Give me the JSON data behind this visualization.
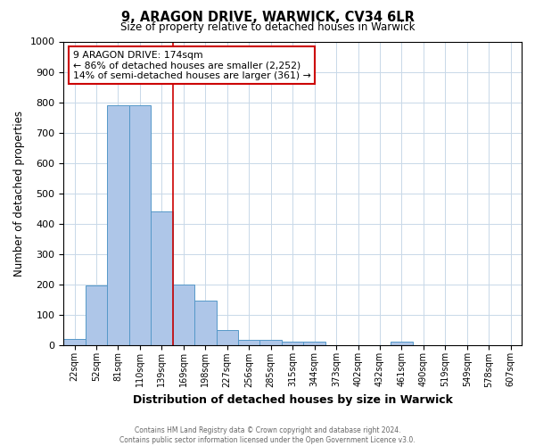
{
  "title": "9, ARAGON DRIVE, WARWICK, CV34 6LR",
  "subtitle": "Size of property relative to detached houses in Warwick",
  "xlabel": "Distribution of detached houses by size in Warwick",
  "ylabel": "Number of detached properties",
  "footer": "Contains HM Land Registry data © Crown copyright and database right 2024.\nContains public sector information licensed under the Open Government Licence v3.0.",
  "bins": [
    "22sqm",
    "52sqm",
    "81sqm",
    "110sqm",
    "139sqm",
    "169sqm",
    "198sqm",
    "227sqm",
    "256sqm",
    "285sqm",
    "315sqm",
    "344sqm",
    "373sqm",
    "402sqm",
    "432sqm",
    "461sqm",
    "490sqm",
    "519sqm",
    "549sqm",
    "578sqm",
    "607sqm"
  ],
  "bin_edges": [
    0,
    1,
    2,
    3,
    4,
    5,
    6,
    7,
    8,
    9,
    10,
    11,
    12,
    13,
    14,
    15,
    16,
    17,
    18,
    19,
    20
  ],
  "values": [
    20,
    195,
    790,
    790,
    440,
    200,
    145,
    50,
    15,
    15,
    10,
    10,
    0,
    0,
    0,
    10,
    0,
    0,
    0,
    0,
    0
  ],
  "bar_color": "#aec6e8",
  "bar_edge_color": "#5598c8",
  "property_size": 5,
  "red_line_color": "#cc0000",
  "annotation_text": "9 ARAGON DRIVE: 174sqm\n← 86% of detached houses are smaller (2,252)\n14% of semi-detached houses are larger (361) →",
  "annotation_box_color": "#cc0000",
  "ylim": [
    0,
    1000
  ],
  "yticks": [
    0,
    100,
    200,
    300,
    400,
    500,
    600,
    700,
    800,
    900,
    1000
  ],
  "background_color": "#ffffff",
  "grid_color": "#c8d8e8"
}
